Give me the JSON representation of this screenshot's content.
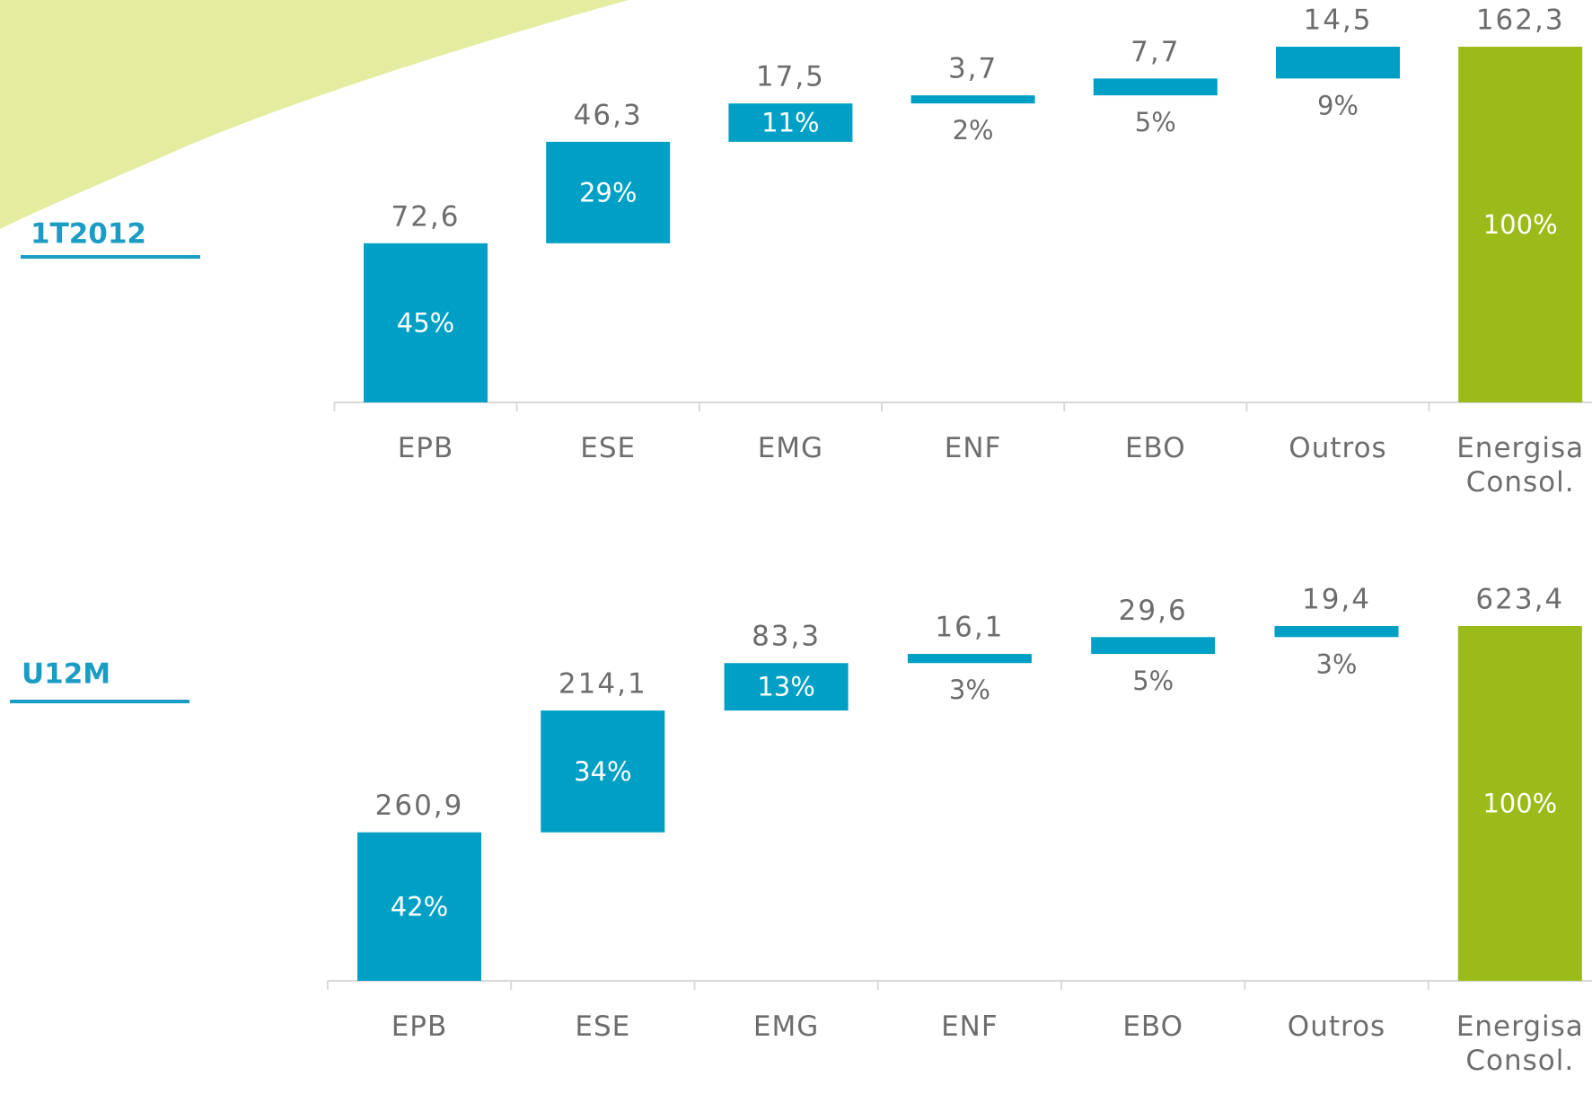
{
  "chart_data": [
    {
      "type": "waterfall",
      "title": "1T2012",
      "categories": [
        "EPB",
        "ESE",
        "EMG",
        "ENF",
        "EBO",
        "Outros",
        "Energisa Consol."
      ],
      "values": [
        72.6,
        46.3,
        17.5,
        3.7,
        7.7,
        14.5,
        162.3
      ],
      "value_labels": [
        "72,6",
        "46,3",
        "17,5",
        "3,7",
        "7,7",
        "14,5",
        "162,3"
      ],
      "percent_labels": [
        "45%",
        "29%",
        "11%",
        "2%",
        "5%",
        "9%",
        "100%"
      ],
      "color": "#00a0c6",
      "total_color": "#9bbb1a"
    },
    {
      "type": "waterfall",
      "title": "U12M",
      "categories": [
        "EPB",
        "ESE",
        "EMG",
        "ENF",
        "EBO",
        "Outros",
        "Energisa Consol."
      ],
      "values": [
        260.9,
        214.1,
        83.3,
        16.1,
        29.6,
        19.4,
        623.4
      ],
      "value_labels": [
        "260,9",
        "214,1",
        "83,3",
        "16,1",
        "29,6",
        "19,4",
        "623,4"
      ],
      "percent_labels": [
        "42%",
        "34%",
        "13%",
        "3%",
        "5%",
        "3%",
        "100%"
      ],
      "color": "#00a0c6",
      "total_color": "#9bbb1a"
    }
  ]
}
